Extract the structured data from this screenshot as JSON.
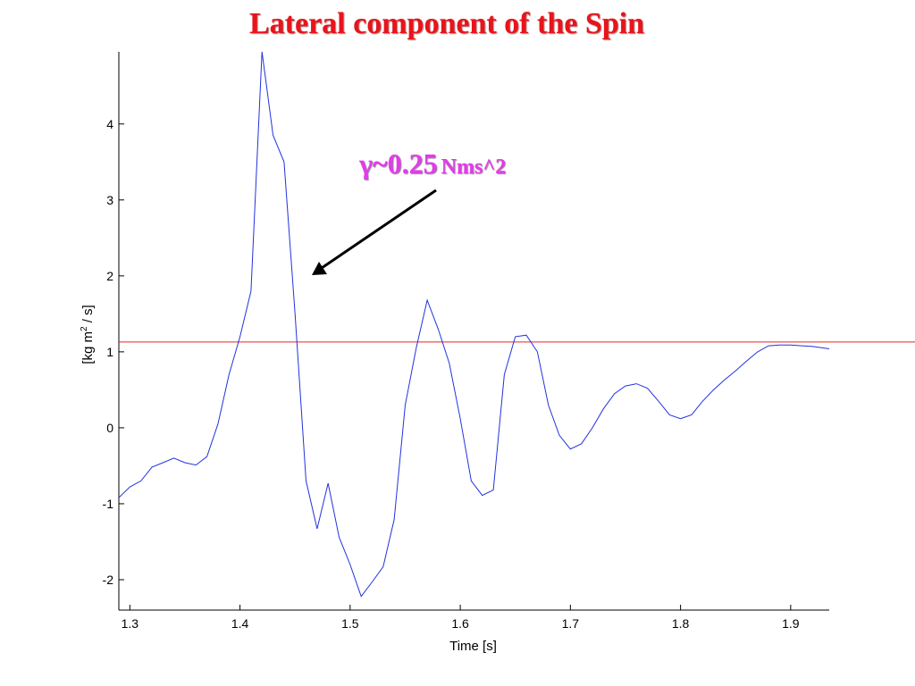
{
  "slide": {
    "title": "Lateral component of the Spin"
  },
  "annotation": {
    "symbol": "γ",
    "value": "~0.25",
    "unit": "Nms^2"
  },
  "colors": {
    "title": "#e8141c",
    "annotation": "#e23ce8",
    "series_line": "#2233dd",
    "reference_line": "#ee2222",
    "axis": "#000000"
  },
  "chart_data": {
    "type": "line",
    "title": "",
    "xlabel": "Time [s]",
    "ylabel_parts": [
      "[kg m",
      "2",
      " / s]"
    ],
    "xlim": [
      1.29,
      1.935
    ],
    "ylim": [
      -2.4,
      4.95
    ],
    "x_ticks": [
      1.3,
      1.4,
      1.5,
      1.6,
      1.7,
      1.8,
      1.9
    ],
    "y_ticks": [
      -2,
      -1,
      0,
      1,
      2,
      3,
      4
    ],
    "grid": false,
    "reference_line": {
      "y": 1.13
    },
    "series": [
      {
        "x": [
          1.29,
          1.3,
          1.31,
          1.32,
          1.33,
          1.34,
          1.35,
          1.36,
          1.37,
          1.38,
          1.39,
          1.4,
          1.41,
          1.42,
          1.43,
          1.44,
          1.45,
          1.46,
          1.47,
          1.48,
          1.49,
          1.5,
          1.51,
          1.52,
          1.53,
          1.54,
          1.55,
          1.56,
          1.57,
          1.58,
          1.59,
          1.6,
          1.61,
          1.62,
          1.63,
          1.64,
          1.65,
          1.66,
          1.67,
          1.68,
          1.69,
          1.7,
          1.71,
          1.72,
          1.73,
          1.74,
          1.75,
          1.76,
          1.77,
          1.78,
          1.79,
          1.8,
          1.81,
          1.82,
          1.83,
          1.84,
          1.85,
          1.86,
          1.87,
          1.88,
          1.89,
          1.9,
          1.91,
          1.92,
          1.935
        ],
        "y": [
          -0.92,
          -0.78,
          -0.7,
          -0.52,
          -0.46,
          -0.4,
          -0.46,
          -0.49,
          -0.38,
          0.05,
          0.7,
          1.2,
          1.8,
          4.95,
          3.85,
          3.5,
          1.5,
          -0.7,
          -1.33,
          -0.73,
          -1.44,
          -1.8,
          -2.22,
          -2.03,
          -1.83,
          -1.21,
          0.3,
          1.05,
          1.68,
          1.3,
          0.85,
          0.12,
          -0.7,
          -0.89,
          -0.82,
          0.7,
          1.2,
          1.22,
          1.0,
          0.3,
          -0.1,
          -0.28,
          -0.21,
          0.0,
          0.25,
          0.45,
          0.55,
          0.58,
          0.52,
          0.35,
          0.17,
          0.12,
          0.17,
          0.35,
          0.5,
          0.63,
          0.75,
          0.88,
          1.0,
          1.08,
          1.09,
          1.09,
          1.08,
          1.07,
          1.04
        ]
      }
    ]
  }
}
